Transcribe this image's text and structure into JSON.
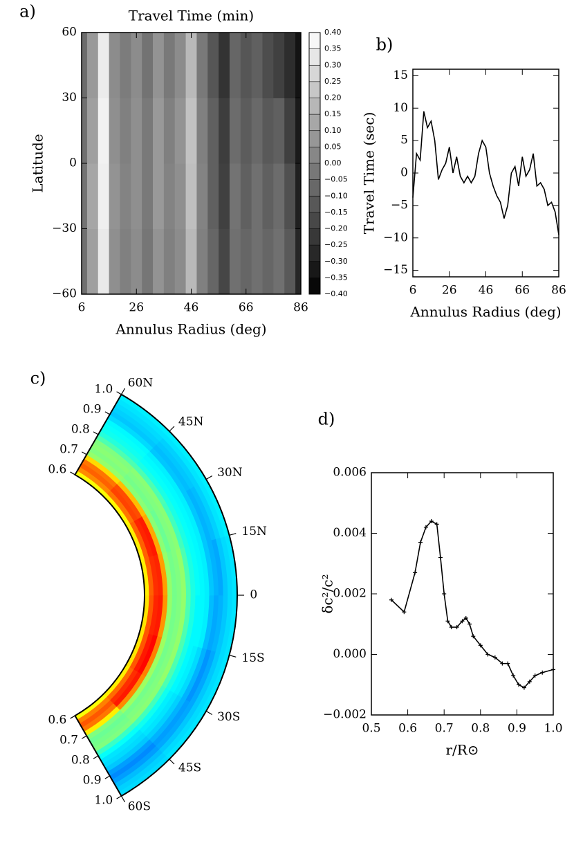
{
  "chart_data": [
    {
      "type": "heatmap",
      "panel_label": "a)",
      "title": "Travel Time (min)",
      "xlabel": "Annulus Radius (deg)",
      "ylabel": "Latitude",
      "x": [
        6,
        10,
        14,
        18,
        22,
        26,
        30,
        34,
        38,
        42,
        46,
        50,
        54,
        58,
        62,
        66,
        70,
        74,
        78,
        82,
        86
      ],
      "y": [
        -45,
        -15,
        15,
        45
      ],
      "z": [
        [
          -0.05,
          0.1,
          0.33,
          0.05,
          0.0,
          0.04,
          -0.03,
          0.06,
          0.0,
          0.04,
          0.18,
          0.0,
          -0.08,
          -0.18,
          -0.05,
          -0.08,
          -0.05,
          -0.08,
          -0.05,
          -0.12,
          -0.28
        ],
        [
          -0.04,
          0.12,
          0.35,
          0.06,
          0.01,
          0.05,
          -0.02,
          0.08,
          0.01,
          0.05,
          0.2,
          0.01,
          -0.1,
          -0.2,
          -0.04,
          -0.1,
          -0.05,
          -0.1,
          -0.06,
          -0.15,
          -0.3
        ],
        [
          -0.05,
          0.1,
          0.36,
          0.05,
          0.0,
          0.05,
          -0.02,
          0.08,
          0.0,
          0.06,
          0.21,
          0.0,
          -0.1,
          -0.21,
          -0.06,
          -0.11,
          -0.07,
          -0.12,
          -0.1,
          -0.2,
          -0.32
        ],
        [
          -0.06,
          0.08,
          0.34,
          0.04,
          -0.01,
          0.04,
          -0.04,
          0.06,
          -0.02,
          0.04,
          0.18,
          -0.02,
          -0.13,
          -0.24,
          -0.08,
          -0.13,
          -0.1,
          -0.16,
          -0.2,
          -0.26,
          -0.34
        ]
      ],
      "xlim": [
        6,
        86
      ],
      "ylim": [
        -60,
        60
      ],
      "xticks": [
        6,
        26,
        46,
        66,
        86
      ],
      "yticks": [
        {
          "value": -60,
          "label": "−60"
        },
        {
          "value": -30,
          "label": "−30"
        },
        0,
        30,
        60
      ],
      "colormap": "gray",
      "clim": [
        -0.4,
        0.4
      ],
      "colorbar_ticks": [
        {
          "value": 0.4,
          "label": "0.40"
        },
        0.35,
        {
          "value": 0.3,
          "label": "0.30"
        },
        0.25,
        {
          "value": 0.2,
          "label": "0.20"
        },
        0.15,
        {
          "value": 0.1,
          "label": "0.10"
        },
        0.05,
        {
          "value": 0,
          "label": "0.00"
        },
        {
          "value": -0.05,
          "label": "−0.05"
        },
        {
          "value": -0.1,
          "label": "−0.10"
        },
        {
          "value": -0.15,
          "label": "−0.15"
        },
        {
          "value": -0.2,
          "label": "−0.20"
        },
        {
          "value": -0.25,
          "label": "−0.25"
        },
        {
          "value": -0.3,
          "label": "−0.30"
        },
        {
          "value": -0.35,
          "label": "−0.35"
        },
        {
          "value": -0.4,
          "label": "−0.40"
        }
      ]
    },
    {
      "type": "line",
      "panel_label": "b)",
      "xlabel": "Annulus Radius (deg)",
      "ylabel": "Travel Time (sec)",
      "x": [
        6,
        8,
        10,
        12,
        14,
        16,
        18,
        20,
        22,
        24,
        26,
        28,
        30,
        32,
        34,
        36,
        38,
        40,
        42,
        44,
        46,
        48,
        50,
        52,
        54,
        56,
        58,
        60,
        62,
        64,
        66,
        68,
        70,
        72,
        74,
        76,
        78,
        80,
        82,
        84,
        86
      ],
      "values": [
        -3.8,
        3,
        2,
        9.5,
        7,
        8,
        5,
        -1,
        0.5,
        1.5,
        4,
        0,
        2.5,
        -0.5,
        -1.5,
        -0.5,
        -1.5,
        -0.5,
        3,
        5,
        4,
        0,
        -2,
        -3.5,
        -4.5,
        -7,
        -5,
        0,
        1,
        -2,
        2.5,
        -0.5,
        0.5,
        3,
        -2,
        -1.5,
        -2.5,
        -5,
        -4.5,
        -6,
        -9.5
      ],
      "color": "#000000",
      "xlim": [
        6,
        86
      ],
      "ylim": [
        -16,
        16
      ],
      "xticks": [
        6,
        26,
        46,
        66,
        86
      ],
      "yticks": [
        {
          "value": -15,
          "label": "−15"
        },
        {
          "value": -10,
          "label": "−10"
        },
        {
          "value": -5,
          "label": "−5"
        },
        0,
        5,
        10,
        15
      ]
    },
    {
      "type": "polar_heatmap",
      "panel_label": "c)",
      "r": [
        0.61,
        0.63,
        0.65,
        0.67,
        0.69,
        0.71,
        0.73,
        0.75,
        0.77,
        0.79,
        0.81,
        0.83,
        0.85,
        0.87,
        0.89,
        0.91,
        0.93,
        0.95,
        0.97,
        0.99
      ],
      "lat": [
        -52.5,
        -37.5,
        -22.5,
        -7.5,
        7.5,
        22.5,
        37.5,
        52.5
      ],
      "z": [
        [
          0.0022,
          0.0035,
          0.0039,
          0.0036,
          0.0024,
          0.001,
          0.0008,
          0.0009,
          0.001,
          0.0003,
          -0.0002,
          -0.0005,
          -0.0006,
          -0.0008,
          -0.0012,
          -0.0014,
          -0.0012,
          -0.0009,
          -0.0007,
          -0.0006
        ],
        [
          0.0024,
          0.0037,
          0.0043,
          0.0045,
          0.0034,
          0.0013,
          0.0009,
          0.001,
          0.0011,
          0.0004,
          -0.0001,
          -0.0004,
          -0.0005,
          -0.0007,
          -0.001,
          -0.0012,
          -0.0011,
          -0.0008,
          -0.0006,
          -0.0005
        ],
        [
          0.0025,
          0.0039,
          0.0045,
          0.0047,
          0.0035,
          0.0013,
          0.0009,
          0.001,
          0.0012,
          0.0005,
          0.0,
          -0.0003,
          -0.0004,
          -0.0006,
          -0.001,
          -0.0013,
          -0.0011,
          -0.0008,
          -0.0006,
          -0.0005
        ],
        [
          0.0025,
          0.0039,
          0.0044,
          0.0045,
          0.0033,
          0.0012,
          0.0009,
          0.001,
          0.0012,
          0.0005,
          0.0,
          -0.0003,
          -0.0003,
          -0.0004,
          -0.0009,
          -0.0011,
          -0.001,
          -0.0008,
          -0.0006,
          -0.0005
        ],
        [
          0.0024,
          0.0038,
          0.0043,
          0.0044,
          0.0032,
          0.0012,
          0.0009,
          0.001,
          0.0012,
          0.0005,
          0.0,
          -0.0002,
          -0.0003,
          -0.0004,
          -0.0008,
          -0.001,
          -0.0011,
          -0.0008,
          -0.0006,
          -0.0005
        ],
        [
          0.0024,
          0.0038,
          0.0044,
          0.0045,
          0.0031,
          0.0011,
          0.0008,
          0.001,
          0.0011,
          0.0004,
          0.0,
          -0.0002,
          -0.0003,
          -0.0004,
          -0.0008,
          -0.001,
          -0.0009,
          -0.0007,
          -0.0005,
          -0.0004
        ],
        [
          0.0023,
          0.0036,
          0.0041,
          0.004,
          0.0029,
          0.0011,
          0.0009,
          0.001,
          0.0011,
          0.0005,
          0.0,
          -0.0002,
          -0.0003,
          -0.0004,
          -0.0008,
          -0.0009,
          -0.0008,
          -0.0007,
          -0.0005,
          -0.0004
        ],
        [
          0.0022,
          0.0034,
          0.0038,
          0.0036,
          0.0026,
          0.0012,
          0.001,
          0.0011,
          0.001,
          0.0005,
          0.0001,
          -0.0001,
          -0.0002,
          -0.0003,
          -0.0006,
          -0.0008,
          -0.0007,
          -0.0006,
          -0.0005,
          -0.0004
        ]
      ],
      "rlim": [
        0.6,
        1
      ],
      "latlim": [
        -60,
        60
      ],
      "colormap": "jet",
      "clim": [
        -0.004,
        0.006
      ],
      "rticks": [
        0.6,
        0.7,
        0.8,
        0.9,
        {
          "value": 1,
          "label": "1.0"
        }
      ],
      "latticks": [
        {
          "value": 60,
          "label": "60N"
        },
        {
          "value": 45,
          "label": "45N"
        },
        {
          "value": 30,
          "label": "30N"
        },
        {
          "value": 15,
          "label": "15N"
        },
        0,
        {
          "value": -15,
          "label": "15S"
        },
        {
          "value": -30,
          "label": "30S"
        },
        {
          "value": -45,
          "label": "45S"
        },
        {
          "value": -60,
          "label": "60S"
        }
      ]
    },
    {
      "type": "line",
      "panel_label": "d)",
      "xlabel": "r/R⊙",
      "ylabel": "δc²/c²",
      "x": [
        0.555,
        0.59,
        0.62,
        0.635,
        0.65,
        0.665,
        0.68,
        0.69,
        0.7,
        0.71,
        0.72,
        0.735,
        0.75,
        0.76,
        0.77,
        0.78,
        0.8,
        0.82,
        0.84,
        0.86,
        0.875,
        0.89,
        0.905,
        0.92,
        0.935,
        0.95,
        0.97,
        1.0
      ],
      "values": [
        0.0018,
        0.0014,
        0.0027,
        0.0037,
        0.0042,
        0.0044,
        0.0043,
        0.0032,
        0.002,
        0.0011,
        0.0009,
        0.0009,
        0.0011,
        0.0012,
        0.001,
        0.0006,
        0.0003,
        0.0,
        -0.0001,
        -0.0003,
        -0.0003,
        -0.0007,
        -0.001,
        -0.0011,
        -0.0009,
        -0.0007,
        -0.0006,
        -0.0005
      ],
      "color": "#000000",
      "markers": true,
      "xlim": [
        0.5,
        1
      ],
      "ylim": [
        -0.002,
        0.006
      ],
      "xticks": [
        0.5,
        0.6,
        0.7,
        0.8,
        0.9,
        {
          "value": 1,
          "label": "1.0"
        }
      ],
      "yticks": [
        {
          "value": -0.002,
          "label": "−0.002"
        },
        {
          "value": 0,
          "label": "0.000"
        },
        {
          "value": 0.002,
          "label": "0.002"
        },
        {
          "value": 0.004,
          "label": "0.004"
        },
        {
          "value": 0.006,
          "label": "0.006"
        }
      ]
    }
  ]
}
